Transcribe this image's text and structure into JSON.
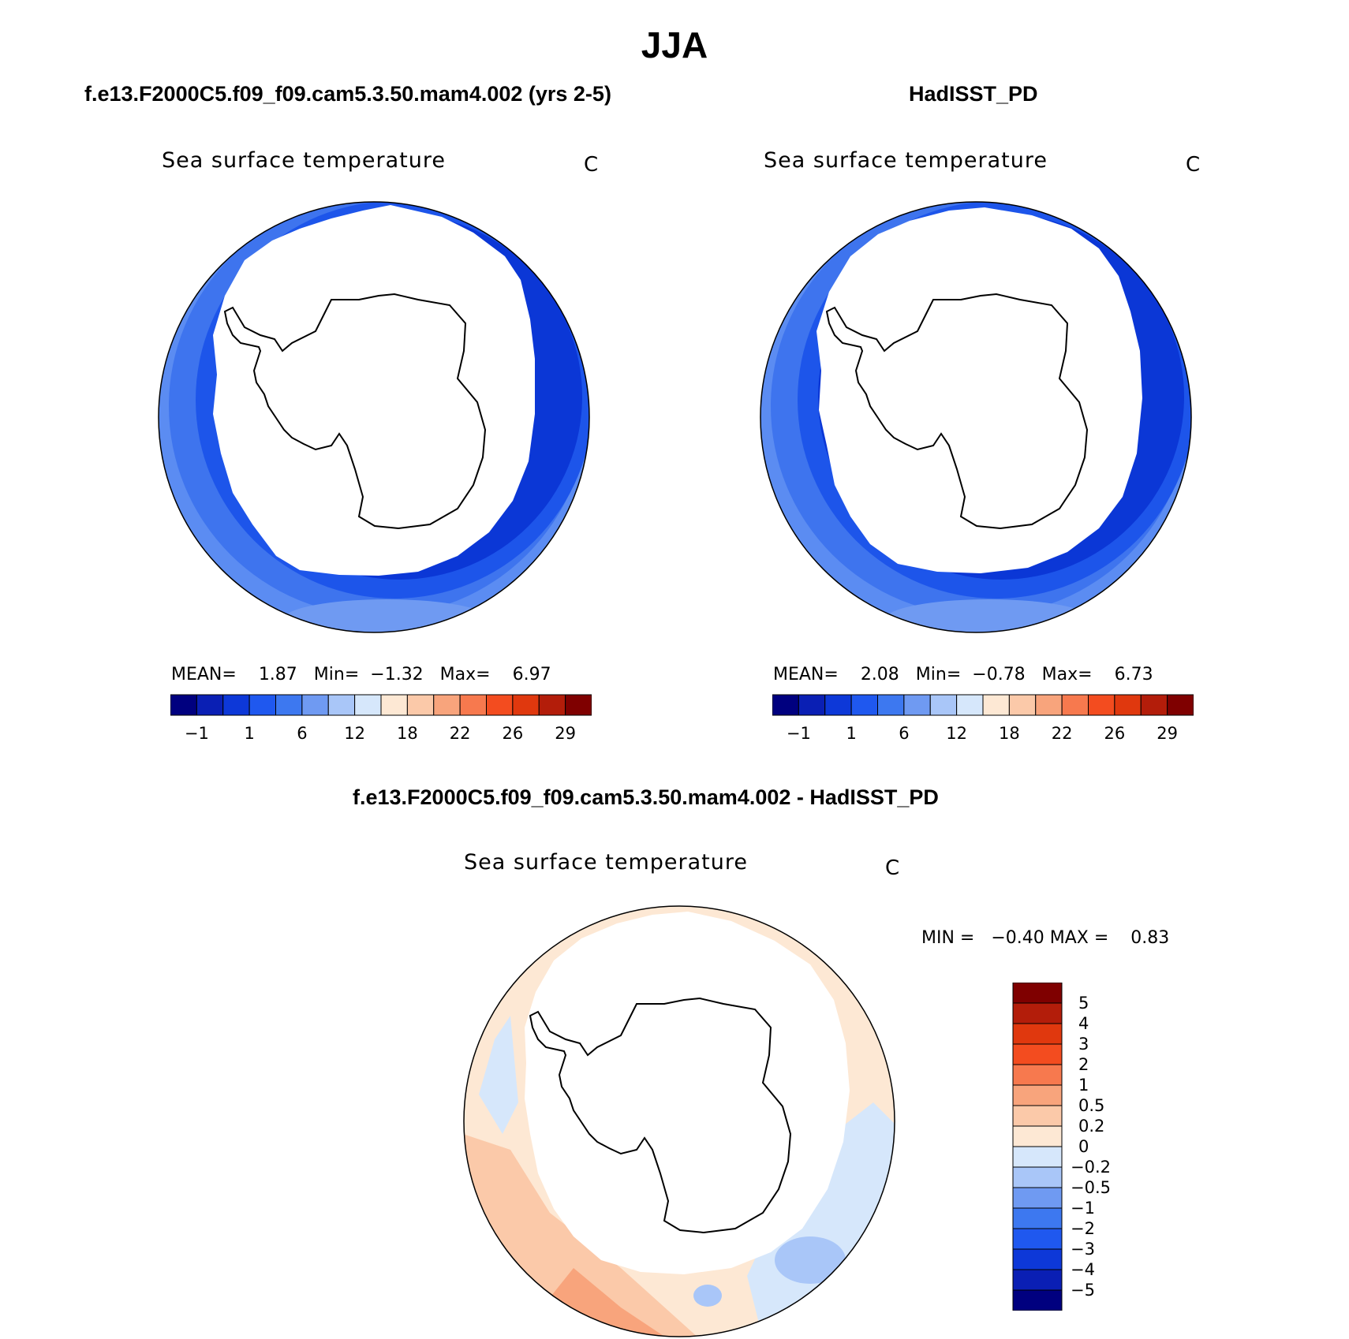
{
  "title": "JJA",
  "panels": [
    {
      "header": "f.e13.F2000C5.f09_f09.cam5.3.50.mam4.002 (yrs 2-5)",
      "variable": "Sea surface temperature",
      "units": "C",
      "stats": {
        "mean_label": "MEAN=",
        "mean": "1.87",
        "min_label": "Min=",
        "min": "−1.32",
        "max_label": "Max=",
        "max": "6.97"
      }
    },
    {
      "header": "HadISST_PD",
      "variable": "Sea surface temperature",
      "units": "C",
      "stats": {
        "mean_label": "MEAN=",
        "mean": "2.08",
        "min_label": "Min=",
        "min": "−0.78",
        "max_label": "Max=",
        "max": "6.73"
      }
    },
    {
      "header": "f.e13.F2000C5.f09_f09.cam5.3.50.mam4.002 - HadISST_PD",
      "variable": "Sea surface temperature",
      "units": "C",
      "stats": {
        "min_label": "MIN =",
        "min": "−0.40",
        "max_label": "MAX =",
        "max": "0.83"
      }
    }
  ],
  "abs_colorbar": {
    "colors": [
      "#00007f",
      "#0a1fb4",
      "#0d38d8",
      "#1f58ef",
      "#3d78f0",
      "#6f9af2",
      "#a9c6f8",
      "#d6e7fb",
      "#fde8d4",
      "#fbc9a9",
      "#f8a47c",
      "#f7794e",
      "#f34c1f",
      "#e0380e",
      "#b31d0a",
      "#7f0000"
    ],
    "tick_labels": [
      "−1",
      "1",
      "6",
      "12",
      "18",
      "22",
      "26",
      "29"
    ]
  },
  "diff_colorbar": {
    "colors": [
      "#00007f",
      "#0a1fb4",
      "#0d38d8",
      "#1f58ef",
      "#3d78f0",
      "#6f9af2",
      "#a9c6f8",
      "#d6e7fb",
      "#fde8d4",
      "#fbc9a9",
      "#f8a47c",
      "#f7794e",
      "#f34c1f",
      "#e0380e",
      "#b31d0a",
      "#7f0000"
    ],
    "tick_labels": [
      "5",
      "4",
      "3",
      "2",
      "1",
      "0.5",
      "0.2",
      "0",
      "−0.2",
      "−0.5",
      "−1",
      "−2",
      "−3",
      "−4",
      "−5"
    ]
  }
}
